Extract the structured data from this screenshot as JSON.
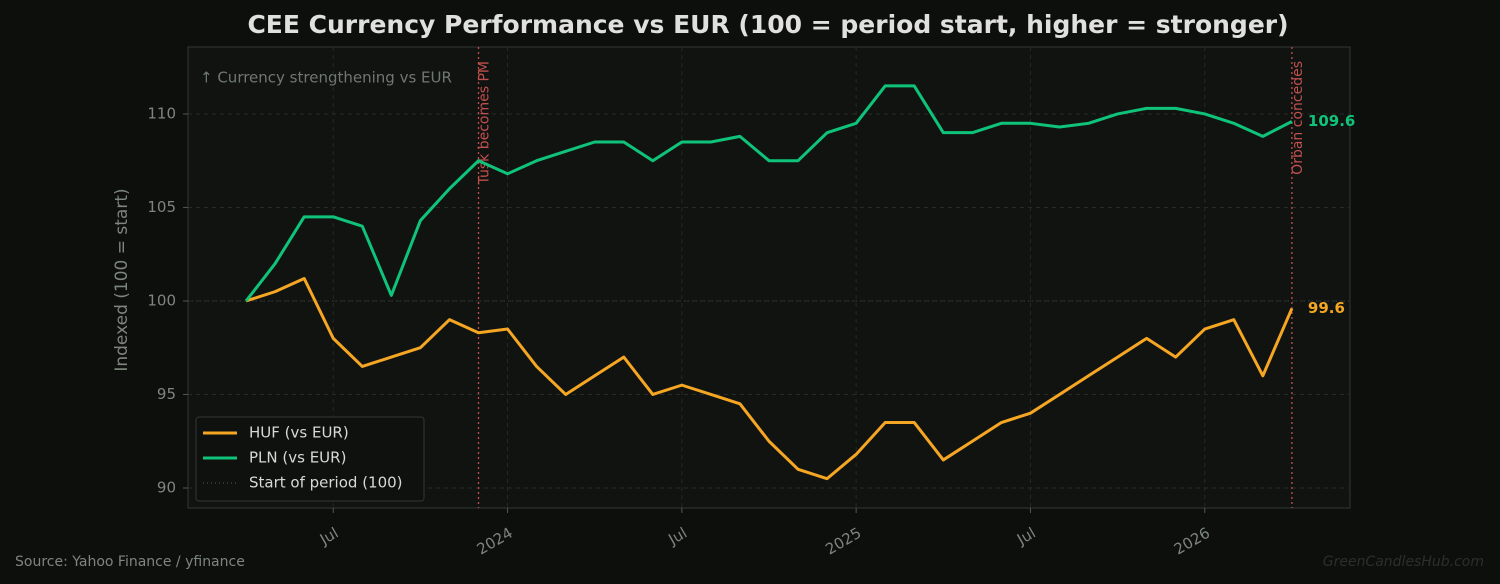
{
  "chart_data": {
    "type": "line",
    "title": "CEE Currency Performance vs EUR (100 = period start, higher = stronger)",
    "ylabel": "Indexed (100 = start)",
    "note": "↑ Currency strengthening vs EUR",
    "source": "Source: Yahoo Finance / yfinance",
    "watermark": "GreenCandlesHub.com",
    "x": [
      "2023-04",
      "2023-05",
      "2023-06",
      "2023-07",
      "2023-08",
      "2023-09",
      "2023-10",
      "2023-11",
      "2023-12",
      "2024-01",
      "2024-02",
      "2024-03",
      "2024-04",
      "2024-05",
      "2024-06",
      "2024-07",
      "2024-08",
      "2024-09",
      "2024-10",
      "2024-11",
      "2024-12",
      "2025-01",
      "2025-02",
      "2025-03",
      "2025-04",
      "2025-05",
      "2025-06",
      "2025-07",
      "2025-08",
      "2025-09",
      "2025-10",
      "2025-11",
      "2025-12",
      "2026-01",
      "2026-02",
      "2026-03",
      "2026-04"
    ],
    "series": [
      {
        "name": "HUF (vs EUR)",
        "color": "#f5a623",
        "values": [
          100.0,
          100.5,
          101.2,
          98,
          96.5,
          97,
          97.5,
          99,
          98.3,
          98.5,
          96.5,
          95,
          96,
          97,
          95,
          95.5,
          95,
          94.5,
          92.5,
          91,
          90.5,
          91.8,
          93.5,
          93.5,
          91.5,
          92.5,
          93.5,
          94,
          95,
          96,
          97,
          98,
          97,
          98.5,
          99,
          96,
          99.6
        ]
      },
      {
        "name": "PLN (vs EUR)",
        "color": "#0fc47a",
        "values": [
          100.0,
          102,
          104.5,
          104.5,
          104,
          100.3,
          104.3,
          106,
          107.5,
          106.8,
          107.5,
          108,
          108.5,
          108.5,
          107.5,
          108.5,
          108.5,
          108.8,
          107.5,
          107.5,
          109,
          109.5,
          111.5,
          111.5,
          109,
          109,
          109.5,
          109.5,
          109.3,
          109.5,
          110,
          110.3,
          110.3,
          110,
          109.5,
          108.8,
          109.6
        ]
      }
    ],
    "reference_line": {
      "label": "Start of period (100)",
      "value": 100
    },
    "annotations": [
      {
        "x": "2023-12",
        "label": "Tusk becomes PM"
      },
      {
        "x": "2026-04",
        "label": "Orban concedes"
      }
    ],
    "xlim": [
      "2023-02",
      "2026-06"
    ],
    "xticks": [
      {
        "value": "2023-07",
        "label": "Jul"
      },
      {
        "value": "2024-01",
        "label": "2024"
      },
      {
        "value": "2024-07",
        "label": "Jul"
      },
      {
        "value": "2025-01",
        "label": "2025"
      },
      {
        "value": "2025-07",
        "label": "Jul"
      },
      {
        "value": "2026-01",
        "label": "2026"
      }
    ],
    "ylim": [
      88.93,
      113.58
    ],
    "yticks": [
      90,
      95,
      100,
      105,
      110
    ],
    "grid": true,
    "legend": "lower left"
  }
}
